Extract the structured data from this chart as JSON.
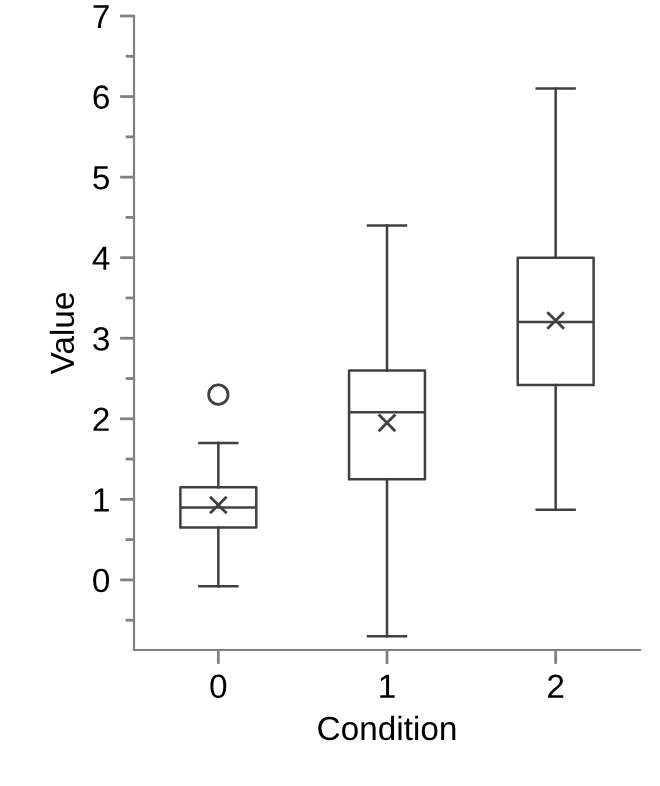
{
  "chart_data": {
    "type": "box",
    "xlabel": "Condition",
    "ylabel": "Value",
    "categories": [
      "0",
      "1",
      "2"
    ],
    "boxes": [
      {
        "low": -0.08,
        "q1": 0.65,
        "median": 0.9,
        "q3": 1.15,
        "high": 1.7,
        "mean": 0.93,
        "outliers": [
          2.3
        ]
      },
      {
        "low": -0.7,
        "q1": 1.25,
        "median": 2.08,
        "q3": 2.6,
        "high": 4.4,
        "mean": 1.95
      },
      {
        "low": 0.87,
        "q1": 2.42,
        "median": 3.2,
        "q3": 4.0,
        "high": 6.1,
        "mean": 3.22
      }
    ],
    "color": "#404040",
    "ylim": [
      -0.87,
      7
    ],
    "yticks": [
      {
        "value": -0.5,
        "label": null
      },
      0,
      {
        "value": 0.5,
        "label": null
      },
      1,
      {
        "value": 1.5,
        "label": null
      },
      2,
      {
        "value": 2.5,
        "label": null
      },
      3,
      {
        "value": 3.5,
        "label": null
      },
      4,
      {
        "value": 4.5,
        "label": null
      },
      5,
      {
        "value": 5.5,
        "label": null
      },
      6,
      {
        "value": 6.5,
        "label": null
      },
      7
    ],
    "grid": false,
    "legend": false
  }
}
